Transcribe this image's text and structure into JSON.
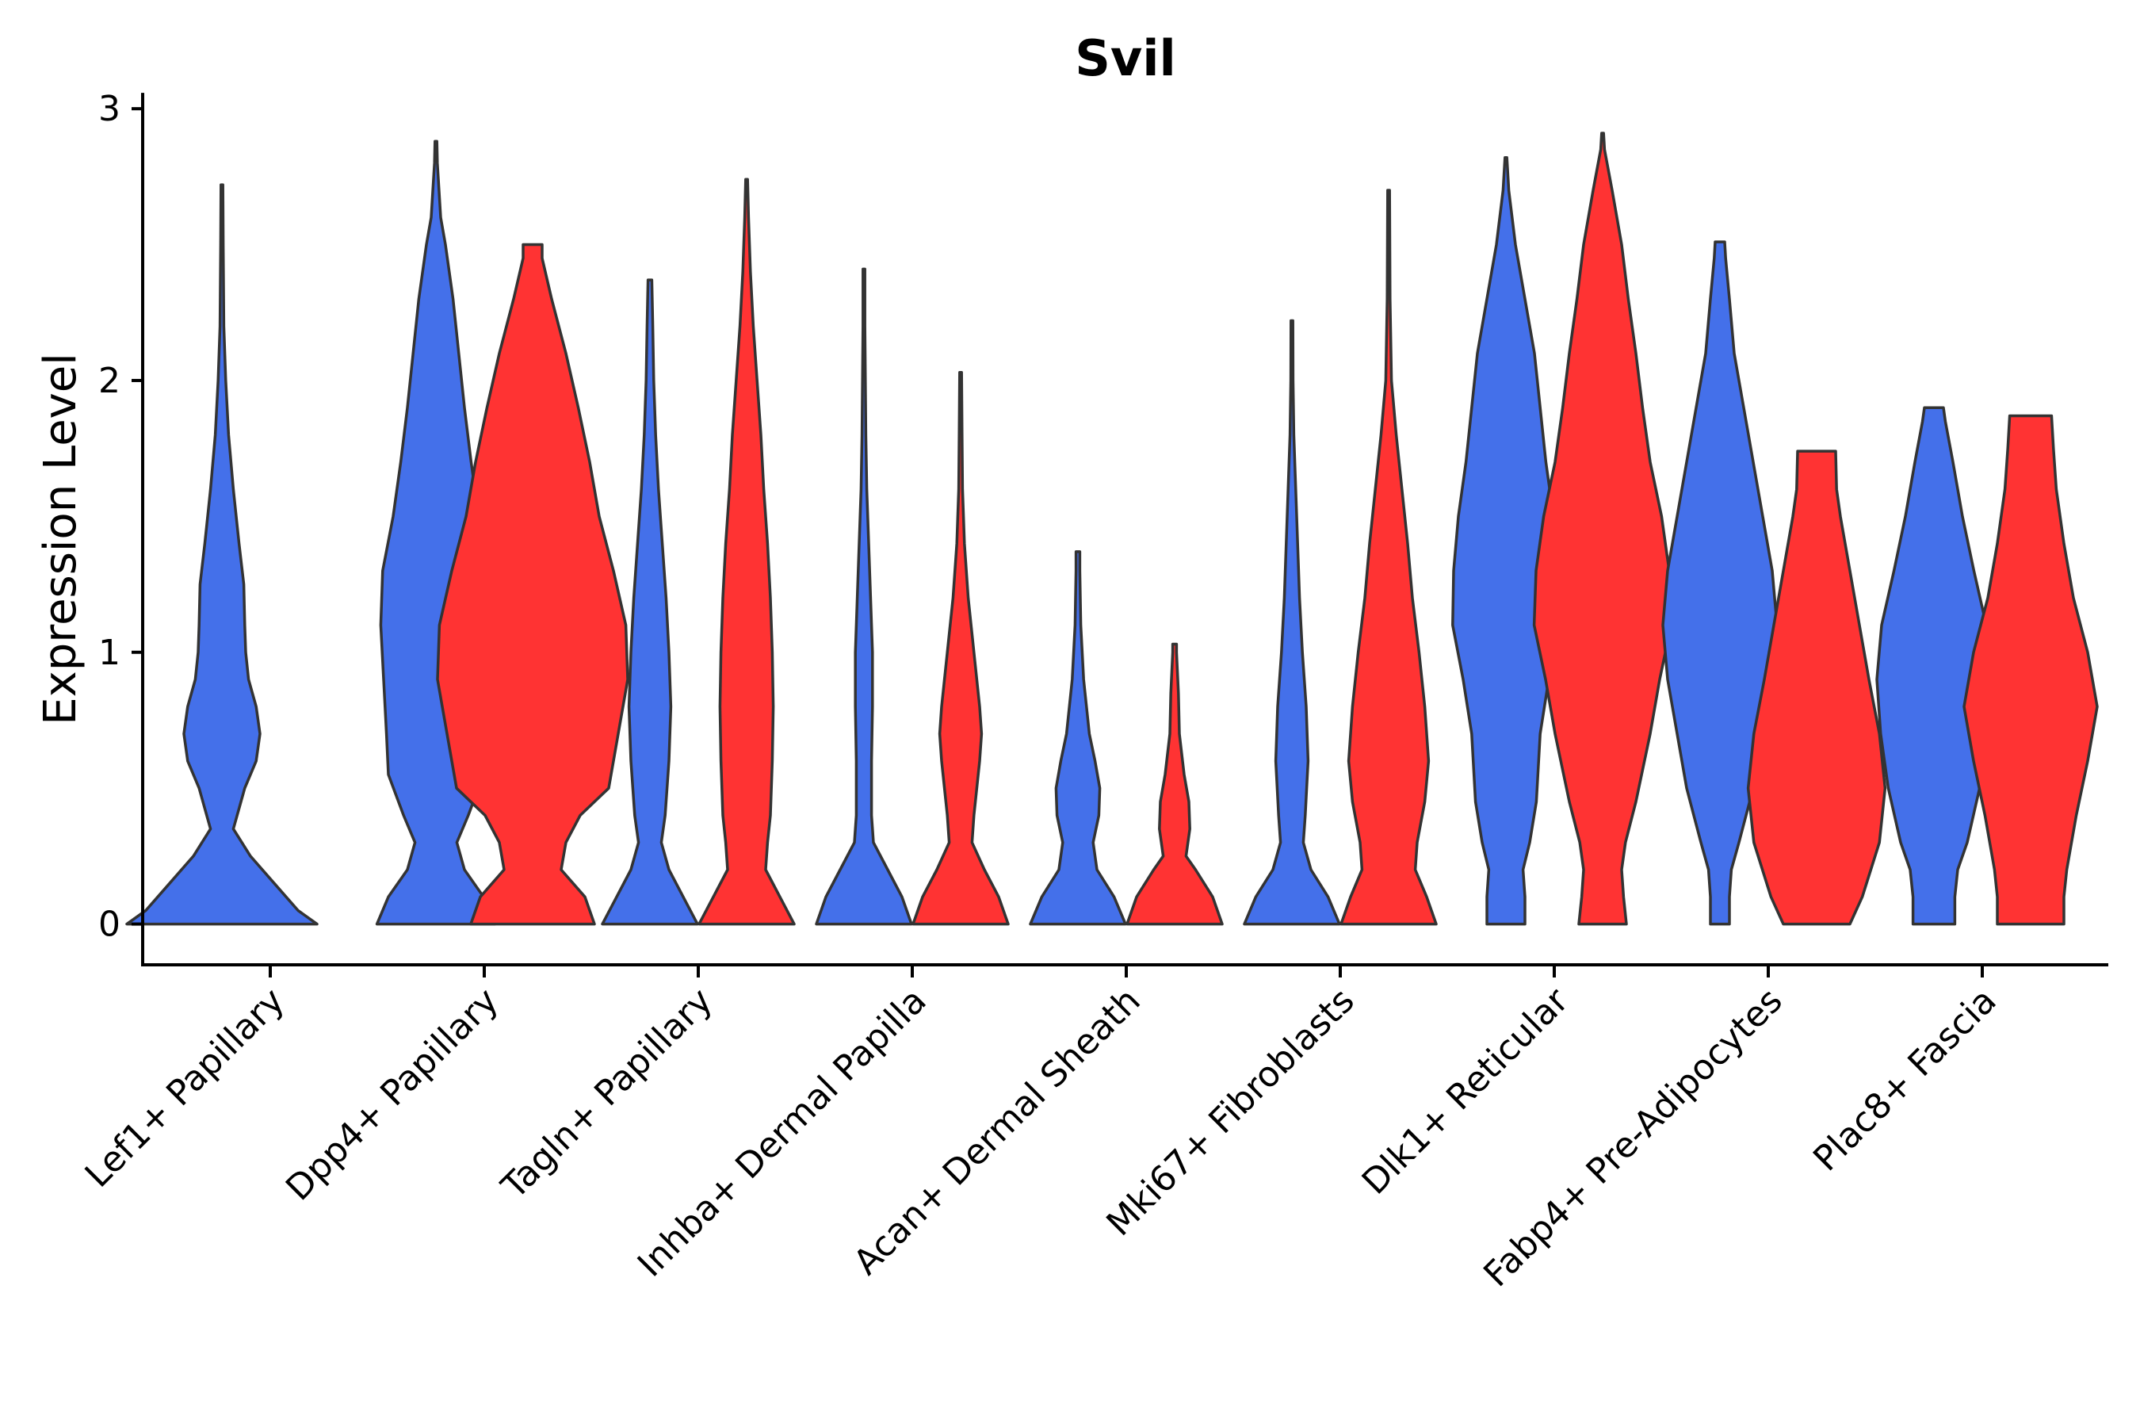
{
  "chart_data": {
    "type": "violin",
    "title": "Svil",
    "xlabel": "",
    "ylabel": "Expression Level",
    "ylim": [
      -0.15,
      3.05
    ],
    "yticks": [
      0,
      1,
      2,
      3
    ],
    "grid": false,
    "legend": "none",
    "series_colors": {
      "group1": "#4470EA",
      "group2": "#FF3333"
    },
    "categories": [
      "Lef1+ Papillary",
      "Dpp4+ Papillary",
      "Tagln+ Papillary",
      "Inhba+ Dermal Papilla",
      "Acan+ Dermal Sheath",
      "Mki67+ Fibroblasts",
      "Dlk1+ Reticular",
      "Fabp4+ Pre-Adipocytes",
      "Plac8+ Fascia"
    ],
    "violins": [
      {
        "category": "Lef1+ Papillary",
        "group": "group1",
        "max": 2.72,
        "profile": [
          [
            0,
            1.0
          ],
          [
            0.05,
            0.8
          ],
          [
            0.15,
            0.55
          ],
          [
            0.25,
            0.3
          ],
          [
            0.35,
            0.12
          ],
          [
            0.5,
            0.24
          ],
          [
            0.6,
            0.36
          ],
          [
            0.7,
            0.4
          ],
          [
            0.8,
            0.36
          ],
          [
            0.9,
            0.28
          ],
          [
            1.0,
            0.25
          ],
          [
            1.1,
            0.24
          ],
          [
            1.25,
            0.23
          ],
          [
            1.4,
            0.18
          ],
          [
            1.6,
            0.12
          ],
          [
            1.8,
            0.07
          ],
          [
            2.0,
            0.04
          ],
          [
            2.2,
            0.02
          ],
          [
            2.5,
            0.013
          ],
          [
            2.72,
            0.01
          ]
        ]
      },
      {
        "category": "Dpp4+ Papillary",
        "group": "group1",
        "max": 2.88,
        "profile": [
          [
            0,
            0.62
          ],
          [
            0.1,
            0.5
          ],
          [
            0.2,
            0.3
          ],
          [
            0.3,
            0.22
          ],
          [
            0.4,
            0.34
          ],
          [
            0.55,
            0.5
          ],
          [
            0.7,
            0.52
          ],
          [
            0.9,
            0.55
          ],
          [
            1.1,
            0.58
          ],
          [
            1.3,
            0.56
          ],
          [
            1.5,
            0.45
          ],
          [
            1.7,
            0.37
          ],
          [
            1.9,
            0.3
          ],
          [
            2.1,
            0.24
          ],
          [
            2.3,
            0.18
          ],
          [
            2.5,
            0.1
          ],
          [
            2.6,
            0.05
          ],
          [
            2.8,
            0.015
          ],
          [
            2.88,
            0.01
          ]
        ]
      },
      {
        "category": "Dpp4+ Papillary",
        "group": "group2",
        "max": 2.5,
        "profile": [
          [
            0,
            0.65
          ],
          [
            0.1,
            0.55
          ],
          [
            0.2,
            0.3
          ],
          [
            0.3,
            0.35
          ],
          [
            0.4,
            0.5
          ],
          [
            0.5,
            0.8
          ],
          [
            0.7,
            0.9
          ],
          [
            0.9,
            1.0
          ],
          [
            1.1,
            0.98
          ],
          [
            1.3,
            0.85
          ],
          [
            1.5,
            0.7
          ],
          [
            1.7,
            0.6
          ],
          [
            1.9,
            0.48
          ],
          [
            2.1,
            0.35
          ],
          [
            2.3,
            0.2
          ],
          [
            2.45,
            0.1
          ],
          [
            2.5,
            0.1
          ]
        ]
      },
      {
        "category": "Tagln+ Papillary",
        "group": "group1",
        "max": 2.37,
        "profile": [
          [
            0,
            0.5
          ],
          [
            0.1,
            0.35
          ],
          [
            0.2,
            0.2
          ],
          [
            0.3,
            0.12
          ],
          [
            0.4,
            0.16
          ],
          [
            0.6,
            0.2
          ],
          [
            0.8,
            0.22
          ],
          [
            1.0,
            0.2
          ],
          [
            1.2,
            0.17
          ],
          [
            1.4,
            0.13
          ],
          [
            1.6,
            0.09
          ],
          [
            1.8,
            0.06
          ],
          [
            2.0,
            0.04
          ],
          [
            2.2,
            0.03
          ],
          [
            2.37,
            0.02
          ]
        ]
      },
      {
        "category": "Tagln+ Papillary",
        "group": "group2",
        "max": 2.74,
        "profile": [
          [
            0,
            0.5
          ],
          [
            0.1,
            0.35
          ],
          [
            0.2,
            0.2
          ],
          [
            0.3,
            0.22
          ],
          [
            0.4,
            0.25
          ],
          [
            0.6,
            0.27
          ],
          [
            0.8,
            0.28
          ],
          [
            1.0,
            0.27
          ],
          [
            1.2,
            0.25
          ],
          [
            1.4,
            0.22
          ],
          [
            1.6,
            0.18
          ],
          [
            1.8,
            0.15
          ],
          [
            2.0,
            0.11
          ],
          [
            2.2,
            0.07
          ],
          [
            2.4,
            0.04
          ],
          [
            2.6,
            0.02
          ],
          [
            2.74,
            0.01
          ]
        ]
      },
      {
        "category": "Inhba+ Dermal Papilla",
        "group": "group1",
        "max": 2.41,
        "profile": [
          [
            0,
            0.5
          ],
          [
            0.1,
            0.4
          ],
          [
            0.2,
            0.25
          ],
          [
            0.3,
            0.1
          ],
          [
            0.4,
            0.08
          ],
          [
            0.6,
            0.08
          ],
          [
            0.8,
            0.09
          ],
          [
            1.0,
            0.09
          ],
          [
            1.2,
            0.07
          ],
          [
            1.4,
            0.05
          ],
          [
            1.6,
            0.03
          ],
          [
            1.8,
            0.02
          ],
          [
            2.0,
            0.015
          ],
          [
            2.2,
            0.01
          ],
          [
            2.41,
            0.01
          ]
        ]
      },
      {
        "category": "Inhba+ Dermal Papilla",
        "group": "group2",
        "max": 2.03,
        "profile": [
          [
            0,
            0.5
          ],
          [
            0.1,
            0.4
          ],
          [
            0.2,
            0.25
          ],
          [
            0.3,
            0.12
          ],
          [
            0.4,
            0.14
          ],
          [
            0.6,
            0.2
          ],
          [
            0.7,
            0.22
          ],
          [
            0.8,
            0.2
          ],
          [
            1.0,
            0.14
          ],
          [
            1.2,
            0.08
          ],
          [
            1.4,
            0.04
          ],
          [
            1.6,
            0.02
          ],
          [
            1.8,
            0.015
          ],
          [
            2.03,
            0.01
          ]
        ]
      },
      {
        "category": "Acan+ Dermal Sheath",
        "group": "group1",
        "max": 1.37,
        "profile": [
          [
            0,
            0.5
          ],
          [
            0.1,
            0.38
          ],
          [
            0.2,
            0.2
          ],
          [
            0.3,
            0.16
          ],
          [
            0.4,
            0.22
          ],
          [
            0.5,
            0.23
          ],
          [
            0.6,
            0.18
          ],
          [
            0.7,
            0.12
          ],
          [
            0.9,
            0.06
          ],
          [
            1.1,
            0.03
          ],
          [
            1.3,
            0.02
          ],
          [
            1.37,
            0.02
          ]
        ]
      },
      {
        "category": "Acan+ Dermal Sheath",
        "group": "group2",
        "max": 1.03,
        "profile": [
          [
            0,
            0.5
          ],
          [
            0.1,
            0.4
          ],
          [
            0.2,
            0.22
          ],
          [
            0.25,
            0.12
          ],
          [
            0.35,
            0.16
          ],
          [
            0.45,
            0.15
          ],
          [
            0.55,
            0.1
          ],
          [
            0.7,
            0.05
          ],
          [
            0.85,
            0.04
          ],
          [
            1.0,
            0.02
          ],
          [
            1.03,
            0.02
          ]
        ]
      },
      {
        "category": "Mki67+ Fibroblasts",
        "group": "group1",
        "max": 2.22,
        "profile": [
          [
            0,
            0.5
          ],
          [
            0.1,
            0.38
          ],
          [
            0.2,
            0.2
          ],
          [
            0.3,
            0.12
          ],
          [
            0.4,
            0.14
          ],
          [
            0.6,
            0.17
          ],
          [
            0.8,
            0.15
          ],
          [
            1.0,
            0.11
          ],
          [
            1.2,
            0.08
          ],
          [
            1.4,
            0.06
          ],
          [
            1.6,
            0.04
          ],
          [
            1.8,
            0.02
          ],
          [
            2.0,
            0.012
          ],
          [
            2.22,
            0.01
          ]
        ]
      },
      {
        "category": "Mki67+ Fibroblasts",
        "group": "group2",
        "max": 2.7,
        "profile": [
          [
            0,
            0.5
          ],
          [
            0.1,
            0.4
          ],
          [
            0.2,
            0.28
          ],
          [
            0.3,
            0.3
          ],
          [
            0.45,
            0.38
          ],
          [
            0.6,
            0.42
          ],
          [
            0.8,
            0.38
          ],
          [
            1.0,
            0.32
          ],
          [
            1.2,
            0.25
          ],
          [
            1.4,
            0.2
          ],
          [
            1.6,
            0.14
          ],
          [
            1.8,
            0.08
          ],
          [
            2.0,
            0.03
          ],
          [
            2.3,
            0.015
          ],
          [
            2.7,
            0.01
          ]
        ]
      },
      {
        "category": "Dlk1+ Reticular",
        "group": "group1",
        "max": 2.82,
        "profile": [
          [
            0,
            0.2
          ],
          [
            0.1,
            0.2
          ],
          [
            0.2,
            0.18
          ],
          [
            0.3,
            0.25
          ],
          [
            0.45,
            0.32
          ],
          [
            0.7,
            0.36
          ],
          [
            0.9,
            0.45
          ],
          [
            1.1,
            0.56
          ],
          [
            1.3,
            0.55
          ],
          [
            1.5,
            0.5
          ],
          [
            1.7,
            0.42
          ],
          [
            1.9,
            0.36
          ],
          [
            2.1,
            0.3
          ],
          [
            2.3,
            0.2
          ],
          [
            2.5,
            0.1
          ],
          [
            2.7,
            0.03
          ],
          [
            2.82,
            0.01
          ]
        ]
      },
      {
        "category": "Dlk1+ Reticular",
        "group": "group2",
        "max": 2.91,
        "profile": [
          [
            0,
            0.25
          ],
          [
            0.1,
            0.22
          ],
          [
            0.2,
            0.2
          ],
          [
            0.3,
            0.24
          ],
          [
            0.45,
            0.35
          ],
          [
            0.7,
            0.5
          ],
          [
            0.9,
            0.6
          ],
          [
            1.1,
            0.72
          ],
          [
            1.3,
            0.7
          ],
          [
            1.5,
            0.62
          ],
          [
            1.7,
            0.5
          ],
          [
            1.9,
            0.42
          ],
          [
            2.1,
            0.35
          ],
          [
            2.3,
            0.27
          ],
          [
            2.5,
            0.2
          ],
          [
            2.7,
            0.1
          ],
          [
            2.85,
            0.02
          ],
          [
            2.91,
            0.01
          ]
        ]
      },
      {
        "category": "Fabp4+ Pre-Adipocytes",
        "group": "group1",
        "max": 2.51,
        "profile": [
          [
            0,
            0.1
          ],
          [
            0.1,
            0.1
          ],
          [
            0.2,
            0.12
          ],
          [
            0.3,
            0.2
          ],
          [
            0.5,
            0.35
          ],
          [
            0.7,
            0.45
          ],
          [
            0.9,
            0.55
          ],
          [
            1.1,
            0.6
          ],
          [
            1.3,
            0.55
          ],
          [
            1.5,
            0.45
          ],
          [
            1.7,
            0.35
          ],
          [
            1.9,
            0.25
          ],
          [
            2.1,
            0.15
          ],
          [
            2.3,
            0.1
          ],
          [
            2.45,
            0.06
          ],
          [
            2.51,
            0.05
          ]
        ]
      },
      {
        "category": "Fabp4+ Pre-Adipocytes",
        "group": "group2",
        "max": 1.74,
        "profile": [
          [
            0,
            0.35
          ],
          [
            0.1,
            0.48
          ],
          [
            0.3,
            0.66
          ],
          [
            0.5,
            0.72
          ],
          [
            0.7,
            0.66
          ],
          [
            0.9,
            0.55
          ],
          [
            1.1,
            0.45
          ],
          [
            1.3,
            0.35
          ],
          [
            1.5,
            0.25
          ],
          [
            1.6,
            0.21
          ],
          [
            1.74,
            0.2
          ]
        ]
      },
      {
        "category": "Plac8+ Fascia",
        "group": "group1",
        "max": 1.9,
        "profile": [
          [
            0,
            0.22
          ],
          [
            0.1,
            0.22
          ],
          [
            0.2,
            0.25
          ],
          [
            0.3,
            0.35
          ],
          [
            0.5,
            0.48
          ],
          [
            0.7,
            0.56
          ],
          [
            0.9,
            0.6
          ],
          [
            1.1,
            0.55
          ],
          [
            1.3,
            0.42
          ],
          [
            1.5,
            0.3
          ],
          [
            1.7,
            0.2
          ],
          [
            1.85,
            0.12
          ],
          [
            1.9,
            0.1
          ]
        ]
      },
      {
        "category": "Plac8+ Fascia",
        "group": "group2",
        "max": 1.87,
        "profile": [
          [
            0,
            0.35
          ],
          [
            0.1,
            0.35
          ],
          [
            0.2,
            0.38
          ],
          [
            0.4,
            0.48
          ],
          [
            0.6,
            0.6
          ],
          [
            0.8,
            0.7
          ],
          [
            1.0,
            0.6
          ],
          [
            1.2,
            0.45
          ],
          [
            1.4,
            0.35
          ],
          [
            1.6,
            0.27
          ],
          [
            1.75,
            0.24
          ],
          [
            1.87,
            0.22
          ]
        ]
      }
    ]
  }
}
